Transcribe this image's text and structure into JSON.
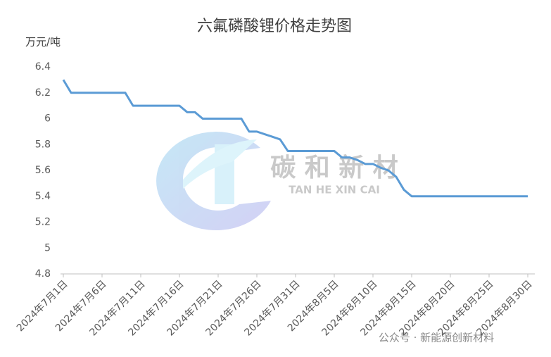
{
  "chart_data": {
    "type": "line",
    "title": "六氟磷酸锂价格走势图",
    "y_label": "万元/吨",
    "categories": [
      "2024年7月1日",
      null,
      null,
      null,
      null,
      "2024年7月6日",
      null,
      null,
      null,
      null,
      "2024年7月11日",
      null,
      null,
      null,
      null,
      "2024年7月16日",
      null,
      null,
      null,
      null,
      "2024年7月21日",
      null,
      null,
      null,
      null,
      "2024年7月26日",
      null,
      null,
      null,
      null,
      "2024年7月31日",
      null,
      null,
      null,
      null,
      "2024年8月5日",
      null,
      null,
      null,
      null,
      "2024年8月10日",
      null,
      null,
      null,
      null,
      "2024年8月15日",
      null,
      null,
      null,
      null,
      "2024年8月20日",
      null,
      null,
      null,
      null,
      "2024年8月25日",
      null,
      null,
      null,
      null,
      "2024年8月30日"
    ],
    "values": [
      6.3,
      6.2,
      6.2,
      6.2,
      6.2,
      6.2,
      6.2,
      6.2,
      6.2,
      6.1,
      6.1,
      6.1,
      6.1,
      6.1,
      6.1,
      6.1,
      6.05,
      6.05,
      6.0,
      6.0,
      6.0,
      6.0,
      6.0,
      6.0,
      5.9,
      5.9,
      5.88,
      5.86,
      5.84,
      5.75,
      5.75,
      5.75,
      5.75,
      5.75,
      5.75,
      5.75,
      5.7,
      5.7,
      5.68,
      5.65,
      5.65,
      5.62,
      5.6,
      5.55,
      5.45,
      5.4,
      5.4,
      5.4,
      5.4,
      5.4,
      5.4,
      5.4,
      5.4,
      5.4,
      5.4,
      5.4,
      5.4,
      5.4,
      5.4,
      5.4,
      5.4
    ],
    "color": "#5b9bd5",
    "ylim": [
      4.8,
      6.4
    ],
    "yticks": [
      4.8,
      5,
      5.2,
      5.4,
      5.6,
      5.8,
      6,
      6.2,
      6.4
    ],
    "grid": false,
    "watermark": {
      "logo": "碳 和 新 材",
      "logo_sub": "TAN  HE  XIN  CAI",
      "source": "公众号 · 新能源创新材料"
    }
  }
}
